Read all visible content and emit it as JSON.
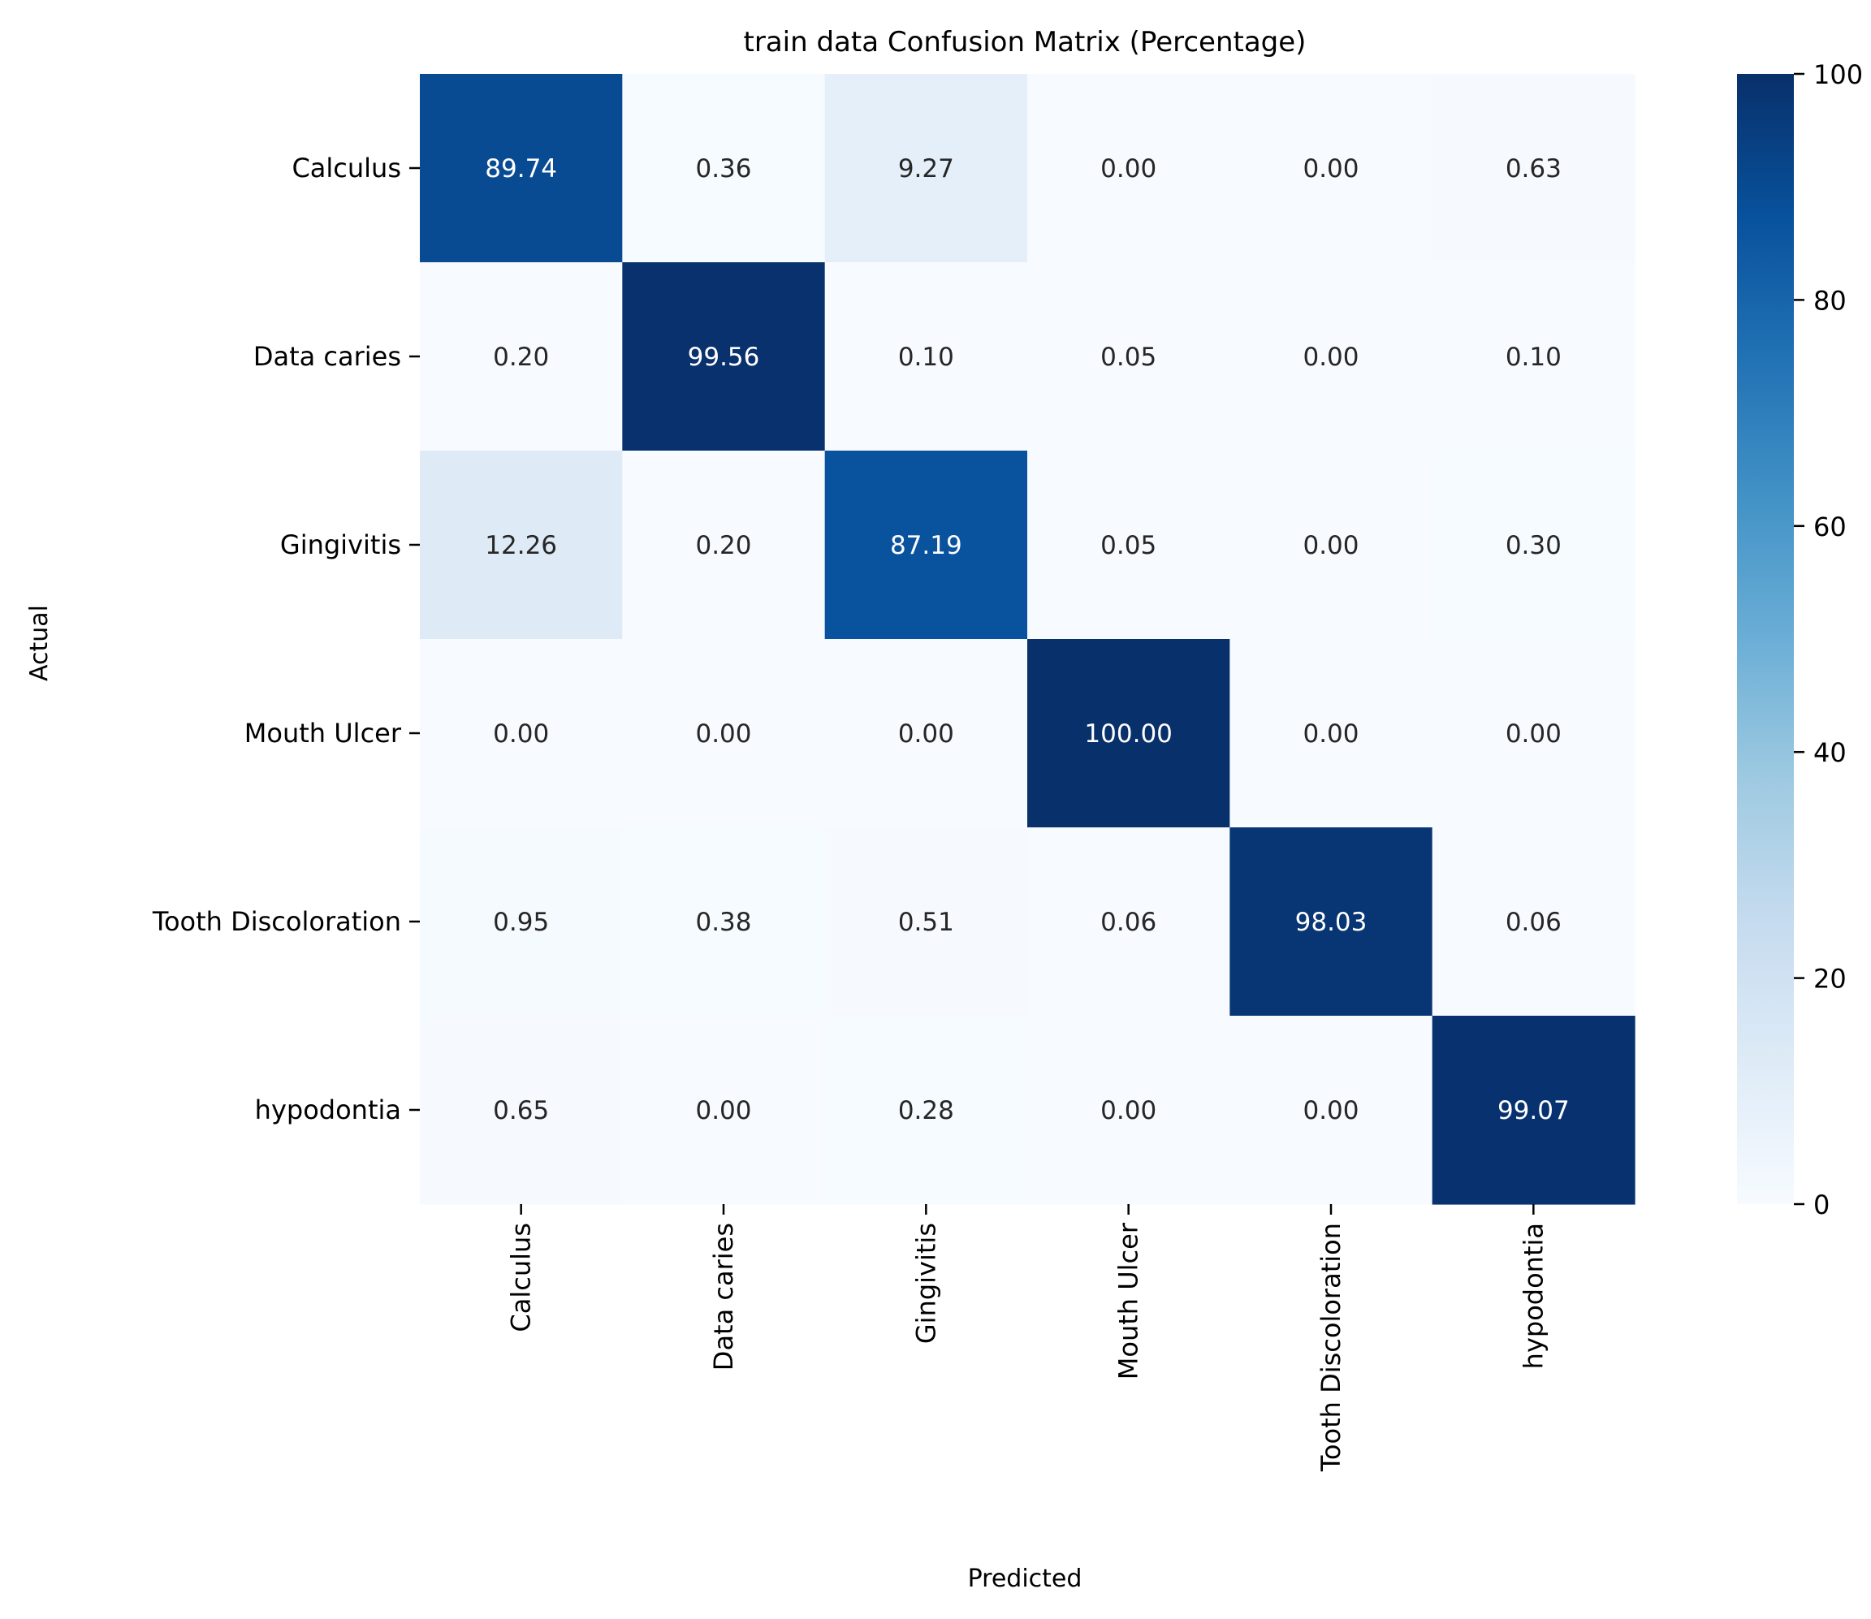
{
  "chart_data": {
    "type": "heatmap",
    "title": "train data Confusion Matrix (Percentage)",
    "xlabel": "Predicted",
    "ylabel": "Actual",
    "x_categories": [
      "Calculus",
      "Data caries",
      "Gingivitis",
      "Mouth Ulcer",
      "Tooth Discoloration",
      "hypodontia"
    ],
    "y_categories": [
      "Calculus",
      "Data caries",
      "Gingivitis",
      "Mouth Ulcer",
      "Tooth Discoloration",
      "hypodontia"
    ],
    "values": [
      [
        89.74,
        0.36,
        9.27,
        0.0,
        0.0,
        0.63
      ],
      [
        0.2,
        99.56,
        0.1,
        0.05,
        0.0,
        0.1
      ],
      [
        12.26,
        0.2,
        87.19,
        0.05,
        0.0,
        0.3
      ],
      [
        0.0,
        0.0,
        0.0,
        100.0,
        0.0,
        0.0
      ],
      [
        0.95,
        0.38,
        0.51,
        0.06,
        98.03,
        0.06
      ],
      [
        0.65,
        0.0,
        0.28,
        0.0,
        0.0,
        99.07
      ]
    ],
    "value_format": "2 decimal places",
    "colormap": "Blues",
    "color_range": [
      0,
      100
    ],
    "colorbar": {
      "ticks": [
        0,
        20,
        40,
        60,
        80,
        100
      ],
      "tick_labels": [
        "0",
        "20",
        "40",
        "60",
        "80",
        "100"
      ],
      "position": "right"
    },
    "text_colors": {
      "light_cells": "#262626",
      "dark_cells": "#ffffff"
    }
  }
}
